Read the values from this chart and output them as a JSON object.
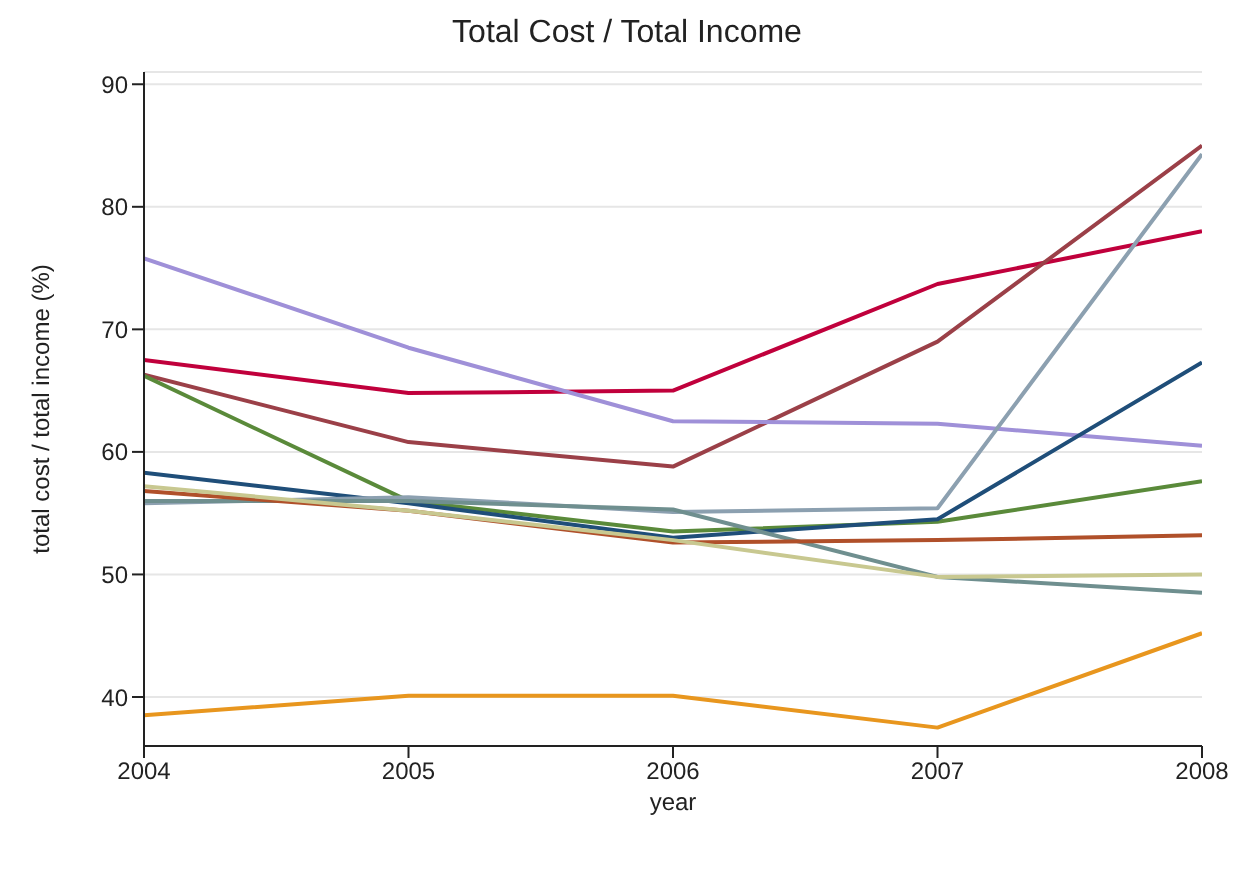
{
  "chart_data": {
    "type": "line",
    "title": "Total Cost / Total Income",
    "xlabel": "year",
    "ylabel": "total cost / total income (%)",
    "x": [
      2004,
      2005,
      2006,
      2007,
      2008
    ],
    "xlim": [
      2004,
      2008
    ],
    "xticks": [
      2004,
      2005,
      2006,
      2007,
      2008
    ],
    "ylim": [
      36,
      91
    ],
    "yticks": [
      40,
      50,
      60,
      70,
      80,
      90
    ],
    "grid": "y",
    "legend": false,
    "marker": "none",
    "line_style": "solid",
    "series": [
      {
        "color": "#c0003c",
        "values": [
          67.5,
          64.8,
          65,
          73.7,
          78
        ]
      },
      {
        "color": "#9b4048",
        "values": [
          66.3,
          60.8,
          58.8,
          69,
          85
        ]
      },
      {
        "color": "#9f90d8",
        "values": [
          75.8,
          68.5,
          62.5,
          62.3,
          60.5
        ]
      },
      {
        "color": "#5a8a3a",
        "values": [
          66.2,
          56,
          53.5,
          54.3,
          57.6
        ]
      },
      {
        "color": "#1f4e79",
        "values": [
          58.3,
          55.8,
          53,
          54.5,
          67.3
        ]
      },
      {
        "color": "#8ca0b0",
        "values": [
          55.8,
          56.3,
          55.1,
          55.4,
          84.3
        ]
      },
      {
        "color": "#6f8f8f",
        "values": [
          56,
          56,
          55.3,
          49.8,
          48.5
        ]
      },
      {
        "color": "#b0502a",
        "values": [
          56.8,
          55.2,
          52.6,
          52.8,
          53.2
        ]
      },
      {
        "color": "#c8c890",
        "values": [
          57.2,
          55.2,
          52.8,
          49.8,
          50
        ]
      },
      {
        "color": "#e8961e",
        "values": [
          38.5,
          40.1,
          40.1,
          37.5,
          45.2
        ]
      }
    ]
  }
}
